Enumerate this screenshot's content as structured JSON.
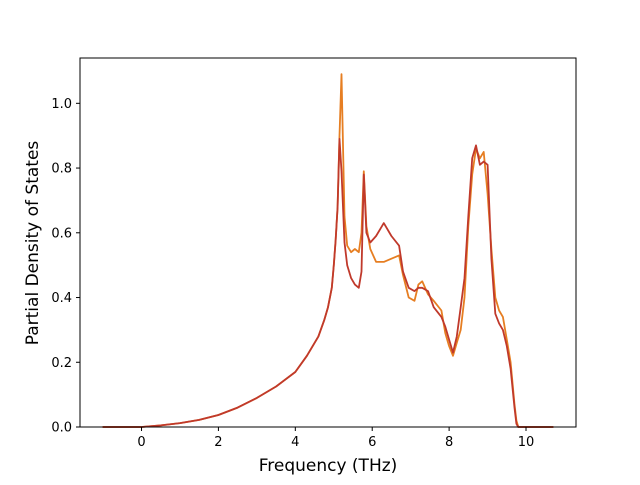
{
  "chart_data": {
    "type": "line",
    "title": "",
    "xlabel": "Frequency (THz)",
    "ylabel": "Partial Density of States",
    "xlim": [
      -1.6,
      11.3
    ],
    "ylim": [
      0,
      1.14
    ],
    "xticks": [
      0,
      2,
      4,
      6,
      8,
      10
    ],
    "xtick_labels": [
      "0",
      "2",
      "4",
      "6",
      "8",
      "10"
    ],
    "yticks": [
      0.0,
      0.2,
      0.4,
      0.6,
      0.8,
      1.0
    ],
    "ytick_labels": [
      "0.0",
      "0.2",
      "0.4",
      "0.6",
      "0.8",
      "1.0"
    ],
    "grid": false,
    "legend": "none",
    "series": [
      {
        "color": "#e67e22",
        "x": [
          -1.0,
          0.0,
          0.5,
          1.0,
          1.5,
          2.0,
          2.5,
          3.0,
          3.5,
          4.0,
          4.3,
          4.6,
          4.75,
          4.85,
          4.95,
          5.0,
          5.05,
          5.1,
          5.15,
          5.2,
          5.28,
          5.35,
          5.45,
          5.55,
          5.65,
          5.72,
          5.78,
          5.85,
          5.95,
          6.1,
          6.3,
          6.5,
          6.7,
          6.8,
          6.95,
          7.1,
          7.2,
          7.3,
          7.45,
          7.6,
          7.8,
          7.9,
          8.0,
          8.1,
          8.2,
          8.3,
          8.4,
          8.5,
          8.6,
          8.7,
          8.8,
          8.9,
          9.0,
          9.1,
          9.2,
          9.3,
          9.4,
          9.5,
          9.6,
          9.7,
          9.75,
          9.8,
          10.0,
          10.5,
          10.7
        ],
        "y": [
          0.0,
          0.0,
          0.005,
          0.012,
          0.022,
          0.037,
          0.06,
          0.09,
          0.125,
          0.17,
          0.22,
          0.28,
          0.33,
          0.37,
          0.43,
          0.5,
          0.58,
          0.68,
          0.9,
          1.09,
          0.65,
          0.56,
          0.54,
          0.55,
          0.54,
          0.6,
          0.79,
          0.62,
          0.55,
          0.51,
          0.51,
          0.52,
          0.53,
          0.47,
          0.4,
          0.39,
          0.44,
          0.45,
          0.41,
          0.39,
          0.36,
          0.29,
          0.25,
          0.22,
          0.26,
          0.3,
          0.4,
          0.62,
          0.78,
          0.86,
          0.83,
          0.85,
          0.72,
          0.55,
          0.4,
          0.36,
          0.34,
          0.27,
          0.2,
          0.07,
          0.02,
          0.0,
          0.0,
          0.0,
          0.0
        ]
      },
      {
        "color": "#c0392b",
        "x": [
          -1.0,
          0.0,
          0.5,
          1.0,
          1.5,
          2.0,
          2.5,
          3.0,
          3.5,
          4.0,
          4.3,
          4.6,
          4.75,
          4.85,
          4.95,
          5.0,
          5.05,
          5.1,
          5.15,
          5.2,
          5.28,
          5.35,
          5.45,
          5.55,
          5.65,
          5.72,
          5.78,
          5.85,
          5.95,
          6.1,
          6.3,
          6.5,
          6.7,
          6.8,
          6.95,
          7.1,
          7.2,
          7.3,
          7.45,
          7.6,
          7.8,
          7.9,
          8.0,
          8.1,
          8.2,
          8.3,
          8.4,
          8.5,
          8.6,
          8.7,
          8.8,
          8.9,
          9.0,
          9.1,
          9.2,
          9.3,
          9.4,
          9.5,
          9.6,
          9.7,
          9.75,
          9.8,
          10.0,
          10.5,
          10.7
        ],
        "y": [
          0.0,
          0.0,
          0.005,
          0.012,
          0.022,
          0.037,
          0.06,
          0.09,
          0.125,
          0.17,
          0.22,
          0.28,
          0.33,
          0.37,
          0.43,
          0.5,
          0.58,
          0.68,
          0.89,
          0.79,
          0.57,
          0.5,
          0.46,
          0.44,
          0.43,
          0.48,
          0.78,
          0.6,
          0.57,
          0.59,
          0.63,
          0.59,
          0.56,
          0.48,
          0.43,
          0.42,
          0.43,
          0.43,
          0.42,
          0.37,
          0.34,
          0.31,
          0.27,
          0.23,
          0.28,
          0.37,
          0.46,
          0.65,
          0.83,
          0.87,
          0.81,
          0.82,
          0.81,
          0.52,
          0.35,
          0.32,
          0.3,
          0.25,
          0.18,
          0.06,
          0.01,
          0.0,
          0.0,
          0.0,
          0.0
        ]
      }
    ]
  }
}
